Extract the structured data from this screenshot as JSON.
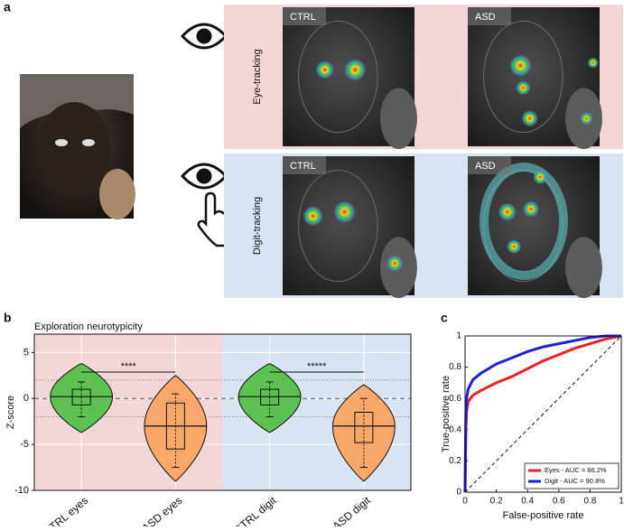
{
  "panel_a": {
    "label": "a",
    "rows": [
      {
        "label": "Eye-tracking",
        "images": [
          "CTRL",
          "ASD"
        ]
      },
      {
        "label": "Digit-tracking",
        "images": [
          "CTRL",
          "ASD"
        ]
      }
    ]
  },
  "chart_data": [
    {
      "type": "violin",
      "panel_label": "b",
      "title": "Exploration neurotypicity",
      "ylabel": "Z-score",
      "categories": [
        "CTRL eyes",
        "ASD eyes",
        "CTRL digit",
        "ASD digit"
      ],
      "colors": [
        "#5cc150",
        "#f9a86a",
        "#5cc150",
        "#f9a86a"
      ],
      "stats": [
        {
          "kde_min": -3.7,
          "min": -2,
          "q1": -0.7,
          "median": 0.2,
          "q3": 1,
          "max": 1.8,
          "kde_max": 3.8
        },
        {
          "kde_min": -9,
          "min": -7.5,
          "q1": -5.5,
          "median": -3,
          "q3": -0.5,
          "max": 0.5,
          "kde_max": 2.5
        },
        {
          "kde_min": -3.7,
          "min": -2,
          "q1": -0.7,
          "median": 0.2,
          "q3": 1,
          "max": 1.8,
          "kde_max": 3.8
        },
        {
          "kde_min": -9,
          "min": -7.5,
          "q1": -4.8,
          "median": -3,
          "q3": -1.5,
          "max": 0,
          "kde_max": 1.5
        }
      ],
      "ylim": [
        -10,
        7
      ],
      "yticks": [
        -10,
        -5,
        0,
        5
      ],
      "reference_lines": [
        2,
        0,
        -2
      ],
      "annotations": [
        "****",
        "*****"
      ],
      "background_colors": [
        "#f3d6d6",
        "#d8e4f1"
      ]
    },
    {
      "type": "line",
      "panel_label": "c",
      "xlabel": "False-positive rate",
      "ylabel": "True-positive rate",
      "x": [
        0,
        0.005,
        0.01,
        0.02,
        0.05,
        0.1,
        0.2,
        0.3,
        0.4,
        0.5,
        0.6,
        0.7,
        0.8,
        0.9,
        1
      ],
      "series": [
        {
          "name": "Eyes - AUC = 86.2%",
          "color": "#e8221e",
          "values": [
            0,
            0.4,
            0.52,
            0.58,
            0.62,
            0.65,
            0.7,
            0.74,
            0.79,
            0.84,
            0.88,
            0.92,
            0.95,
            0.98,
            1
          ]
        },
        {
          "name": "Digit - AUC = 90.8%",
          "color": "#1f1fd6",
          "values": [
            0,
            0.5,
            0.6,
            0.66,
            0.72,
            0.76,
            0.82,
            0.86,
            0.9,
            0.93,
            0.95,
            0.97,
            0.99,
            1,
            1
          ]
        }
      ],
      "xlim": [
        0,
        1
      ],
      "ylim": [
        0,
        1
      ],
      "xticks": [
        0,
        0.2,
        0.4,
        0.6,
        0.8,
        1
      ],
      "yticks": [
        0,
        0.2,
        0.4,
        0.6,
        0.8,
        1
      ],
      "legend": "lower right"
    }
  ]
}
